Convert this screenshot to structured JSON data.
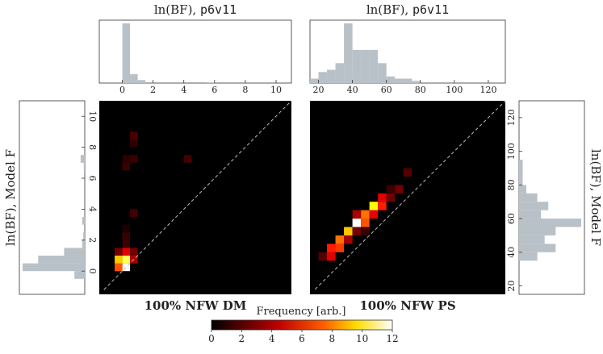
{
  "chart_data": {
    "colorbar": {
      "label": "Frequency [arb.]",
      "range": [
        0,
        12
      ],
      "ticks": [
        "0",
        "2",
        "4",
        "6",
        "8",
        "10",
        "12"
      ],
      "colormap": "hot",
      "colors": [
        "#000000",
        "#8a0000",
        "#ff1a00",
        "#ffaa00",
        "#ffffcc",
        "#ffffff"
      ]
    },
    "panels": [
      {
        "id": "dm",
        "type": "heatmap",
        "title": "100% NFW DM",
        "x_label_prefix": "ln(BF), ",
        "x_label_model": "p6v11",
        "y_label": "ln(BF), Model F",
        "xlim": [
          -1.5,
          11
        ],
        "ylim": [
          -1.5,
          11
        ],
        "xticks": [
          0,
          2,
          4,
          6,
          8,
          10
        ],
        "yticks": [
          0,
          2,
          4,
          6,
          8,
          10
        ],
        "bin_width": 0.5,
        "cells": [
          [
            0.25,
            0.25,
            12
          ],
          [
            -0.25,
            0.25,
            6
          ],
          [
            0.25,
            0.75,
            10
          ],
          [
            -0.25,
            0.75,
            8
          ],
          [
            0.75,
            0.75,
            3
          ],
          [
            0.25,
            1.25,
            4
          ],
          [
            -0.25,
            1.25,
            2
          ],
          [
            0.75,
            1.25,
            2
          ],
          [
            0.25,
            1.75,
            1
          ],
          [
            0.25,
            2.25,
            1
          ],
          [
            0.25,
            2.75,
            0.5
          ],
          [
            0.75,
            3.75,
            1.2
          ],
          [
            0.25,
            6.75,
            1
          ],
          [
            0.25,
            7.25,
            0.8
          ],
          [
            0.75,
            7.25,
            1
          ],
          [
            0.75,
            8.75,
            1.3
          ],
          [
            0.75,
            8.25,
            0.8
          ],
          [
            4.25,
            7.25,
            1.2
          ],
          [
            -0.25,
            0.25,
            6
          ]
        ],
        "x_marginal": {
          "edges_start": -1,
          "bin_width": 0.5,
          "counts": [
            0,
            0,
            40,
            6,
            2,
            0,
            0,
            0,
            0,
            0,
            0,
            0,
            0,
            0.5,
            0,
            0,
            0,
            0,
            0,
            0,
            0,
            0,
            0
          ]
        },
        "y_marginal": {
          "edges_start": -1,
          "bin_width": 0.5,
          "counts": [
            0,
            2,
            12,
            9,
            4,
            0.5,
            0.3,
            0,
            0.5,
            0,
            0,
            0,
            0,
            0,
            0,
            0.2,
            0.8,
            0,
            0,
            0,
            0,
            0,
            0
          ]
        }
      },
      {
        "id": "ps",
        "type": "heatmap",
        "title": "100% NFW PS",
        "x_label_prefix": "ln(BF), ",
        "x_label_model": "p6v11",
        "y_label": "ln(BF), Model F",
        "xlim": [
          15,
          130
        ],
        "ylim": [
          15,
          130
        ],
        "xticks": [
          20,
          40,
          60,
          80,
          100,
          120
        ],
        "yticks": [
          20,
          40,
          60,
          80,
          100,
          120
        ],
        "bin_width": 5,
        "cells": [
          [
            22.5,
            37.5,
            1.5
          ],
          [
            27.5,
            37.5,
            4
          ],
          [
            27.5,
            42.5,
            5
          ],
          [
            32.5,
            42.5,
            5.5
          ],
          [
            32.5,
            47.5,
            6.5
          ],
          [
            37.5,
            52.5,
            8
          ],
          [
            37.5,
            47.5,
            3
          ],
          [
            42.5,
            57.5,
            12
          ],
          [
            42.5,
            52.5,
            2
          ],
          [
            47.5,
            57.5,
            6
          ],
          [
            47.5,
            62.5,
            6.5
          ],
          [
            52.5,
            62.5,
            4
          ],
          [
            52.5,
            67.5,
            9
          ],
          [
            57.5,
            67.5,
            5
          ],
          [
            57.5,
            72.5,
            4
          ],
          [
            62.5,
            72.5,
            2
          ],
          [
            67.5,
            77.5,
            2
          ],
          [
            72.5,
            87.5,
            1.5
          ],
          [
            42.5,
            62.5,
            3
          ],
          [
            47.5,
            52.5,
            1
          ],
          [
            62.5,
            77.5,
            1
          ]
        ],
        "x_marginal": {
          "edges_start": 15,
          "bin_width": 5,
          "counts": [
            2,
            5,
            6,
            9,
            27,
            15,
            15,
            15,
            9,
            3,
            2,
            2,
            1,
            0,
            0,
            0,
            0,
            0,
            0,
            0,
            0,
            0,
            0
          ]
        },
        "y_marginal": {
          "edges_start": 15,
          "bin_width": 5,
          "counts": [
            0,
            0,
            0,
            0,
            5,
            10,
            7,
            10,
            17,
            6,
            8,
            5,
            2,
            1,
            1,
            1,
            0,
            0,
            0,
            0,
            0,
            0,
            0
          ]
        }
      }
    ]
  }
}
